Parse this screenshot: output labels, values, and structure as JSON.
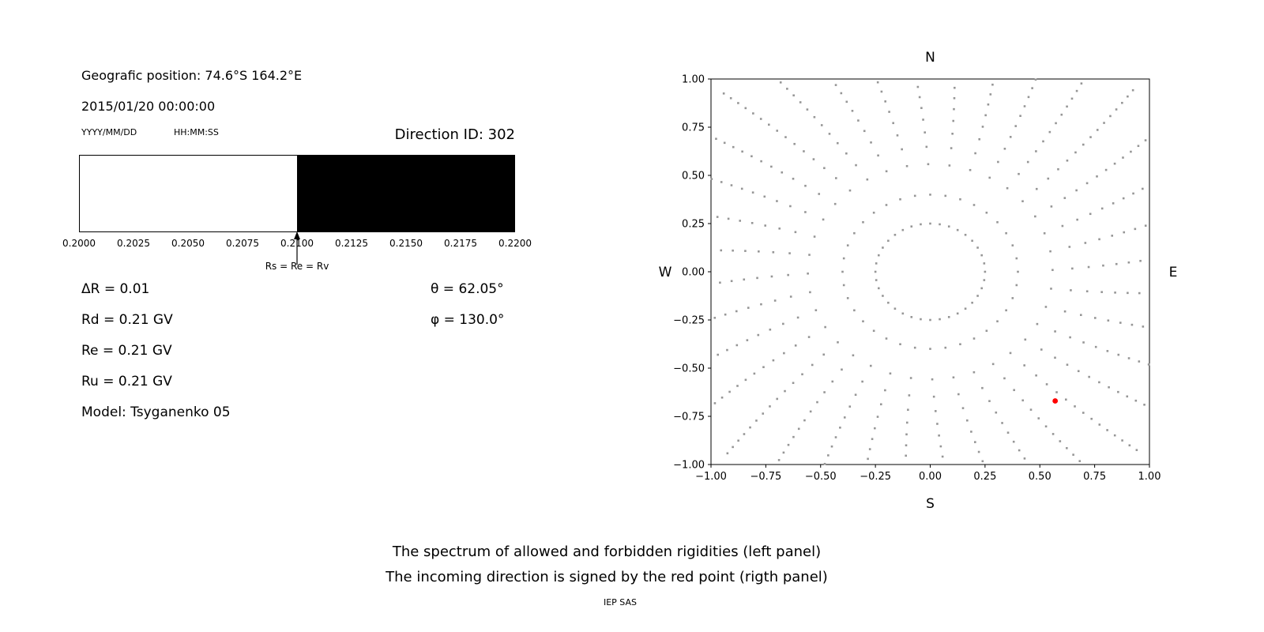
{
  "left_panel": {
    "geo_position": "Geografic position: 74.6°S 164.2°E",
    "datetime": "2015/01/20 00:00:00",
    "date_format_label": "YYYY/MM/DD",
    "time_format_label": "HH:MM:SS",
    "direction_id": "Direction ID: 302",
    "params_left": [
      "ΔR = 0.01",
      "Rd = 0.21 GV",
      "Re = 0.21 GV",
      "Ru = 0.21 GV",
      "Model: Tsyganenko 05"
    ],
    "params_right": [
      "θ = 62.05°",
      "φ = 130.0°"
    ]
  },
  "captions": {
    "line1": "The spectrum of allowed and forbidden rigidities (left panel)",
    "line2": "The incoming direction is signed by the red point (rigth panel)",
    "credit": "IEP SAS"
  },
  "chart_data": [
    {
      "type": "bar",
      "title": "Rigidity spectrum: allowed (white) and forbidden (black) regions",
      "xlim": [
        0.2,
        0.22
      ],
      "x_ticks": [
        "0.2000",
        "0.2025",
        "0.2050",
        "0.2075",
        "0.2100",
        "0.2125",
        "0.2150",
        "0.2175",
        "0.2200"
      ],
      "regions": [
        {
          "name": "allowed",
          "from": 0.2,
          "to": 0.21,
          "color": "#ffffff"
        },
        {
          "name": "forbidden",
          "from": 0.21,
          "to": 0.22,
          "color": "#000000"
        }
      ],
      "annotation": {
        "x": 0.21,
        "label": "Rs = Re = Rv"
      }
    },
    {
      "type": "scatter",
      "title": "Incoming direction map",
      "xlim": [
        -1,
        1
      ],
      "ylim": [
        -1,
        1
      ],
      "x_ticks": [
        "−1.00",
        "−0.75",
        "−0.50",
        "−0.25",
        "0.00",
        "0.25",
        "0.50",
        "0.75",
        "1.00"
      ],
      "y_ticks": [
        "1.00",
        "0.75",
        "0.50",
        "0.25",
        "0.00",
        "−0.25",
        "−0.50",
        "−0.75",
        "−1.00"
      ],
      "compass": {
        "top": "N",
        "bottom": "S",
        "left": "W",
        "right": "E"
      },
      "grid": false,
      "pattern": {
        "description": "radial spokes of gray dots with inner dotted ring, clipped to axes box",
        "spokes": 36,
        "ring_radius": 0.25,
        "r_start": 0.4,
        "r_end": 1.32,
        "dots_per_spoke": 16,
        "r_power": 0.65,
        "curvature_deg": 6,
        "dot_size": 2.6,
        "dot_color": "#969696"
      },
      "red_point": {
        "x": 0.57,
        "y": -0.67,
        "color": "#ff0000"
      }
    }
  ]
}
